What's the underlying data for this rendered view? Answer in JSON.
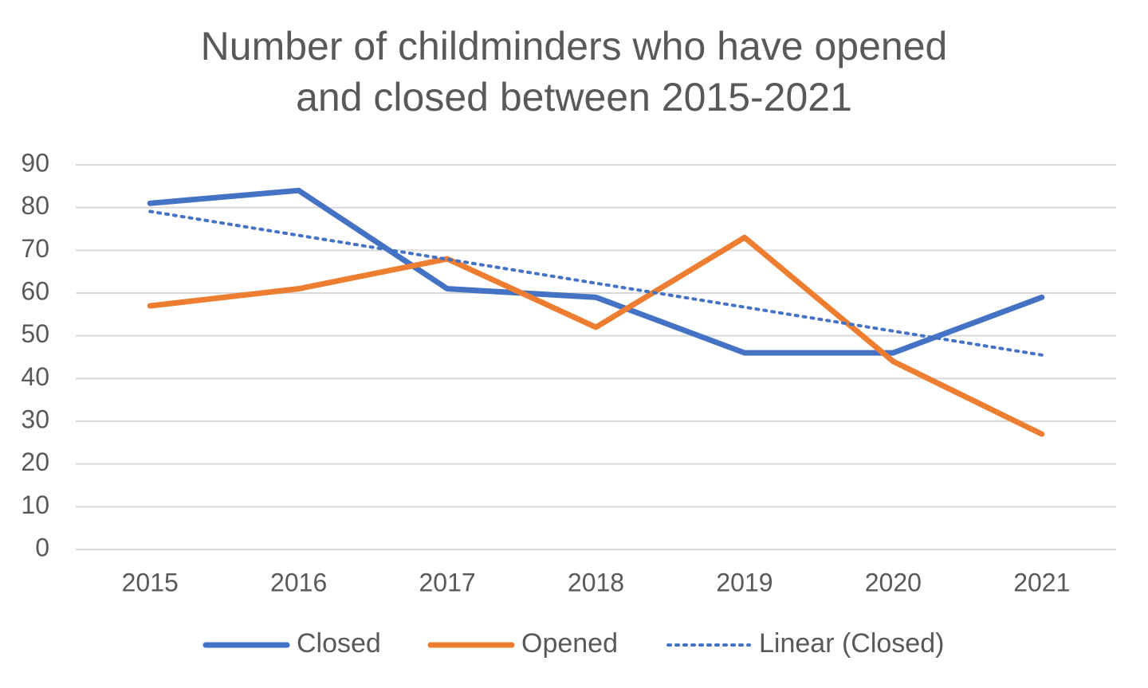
{
  "chart_data": {
    "type": "line",
    "title": [
      "Number of childminders who have opened",
      "and closed between 2015-2021"
    ],
    "categories": [
      "2015",
      "2016",
      "2017",
      "2018",
      "2019",
      "2020",
      "2021"
    ],
    "series": [
      {
        "name": "Closed",
        "color": "#4472c4",
        "values": [
          81,
          84,
          61,
          59,
          46,
          46,
          59
        ]
      },
      {
        "name": "Opened",
        "color": "#ed7d31",
        "values": [
          57,
          61,
          68,
          52,
          73,
          44,
          27
        ]
      },
      {
        "name": "Linear (Closed)",
        "color": "#4472c4",
        "dotted": true,
        "values": [
          79.1,
          73.5,
          67.9,
          62.3,
          56.7,
          51.1,
          45.5
        ]
      }
    ],
    "ylim": [
      0,
      90
    ],
    "yticks": [
      0,
      10,
      20,
      30,
      40,
      50,
      60,
      70,
      80,
      90
    ],
    "grid": true,
    "legend": "bottom"
  }
}
